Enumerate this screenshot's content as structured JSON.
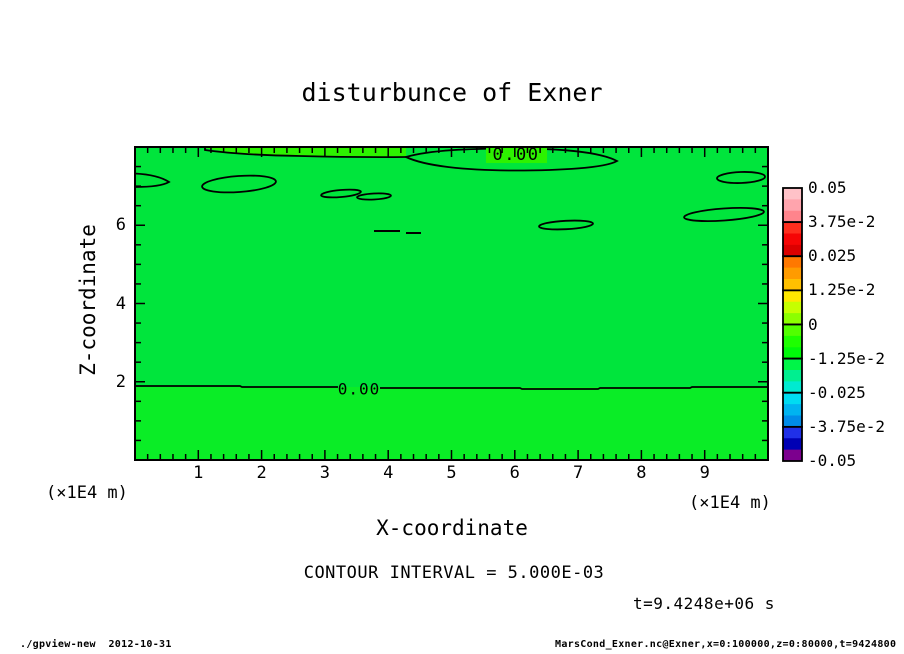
{
  "title": "disturbunce of Exner",
  "colors": {
    "background": "#ffffff",
    "stroke": "#000000",
    "field_main": "#00e53c",
    "field_positive_patch": "#2df200",
    "field_lower_layer": "#0aed26"
  },
  "axes": {
    "x": {
      "label": "X-coordinate",
      "unit": "(×1E4 m)",
      "range": [
        0,
        10
      ],
      "major_ticks": [
        "1",
        "2",
        "3",
        "4",
        "5",
        "6",
        "7",
        "8",
        "9"
      ],
      "minor_step": 0.2
    },
    "z": {
      "label": "Z-coordinate",
      "unit": "(×1E4 m)",
      "range": [
        0,
        8
      ],
      "major_ticks": [
        "2",
        "4",
        "6"
      ],
      "minor_step": 0.5
    }
  },
  "colorbar": {
    "labels": [
      "0.05",
      "3.75e-2",
      "0.025",
      "1.25e-2",
      "0",
      "-1.25e-2",
      "-0.025",
      "-3.75e-2",
      "-0.05"
    ],
    "segments": [
      [
        "#ffc2c8",
        "#ffa4ad",
        "#ff848c"
      ],
      [
        "#ff2e1e",
        "#f60505",
        "#db0000"
      ],
      [
        "#ff7800",
        "#ff9b00",
        "#ffc000"
      ],
      [
        "#ffe800",
        "#c6ff00",
        "#8cff00"
      ],
      [
        "#52ff00",
        "#1eff00",
        "#00fa0a"
      ],
      [
        "#00f548",
        "#00ef90",
        "#00ead0"
      ],
      [
        "#00dcf2",
        "#00b4f0",
        "#008ce8"
      ],
      [
        "#2030e8",
        "#0000b4",
        "#7c008e"
      ]
    ]
  },
  "contour_labels": {
    "upper": "0.00",
    "lower": "0.00"
  },
  "captions": {
    "contour_interval": "CONTOUR INTERVAL = 5.000E-03",
    "time": "t=9.4248e+06 s"
  },
  "footer": {
    "left": "./gpview-new  2012-10-31",
    "right": "MarsCond_Exner.nc@Exner,x=0:100000,z=0:80000,t=9424800"
  },
  "chart_data": {
    "type": "contour",
    "title": "disturbunce of Exner",
    "xlabel": "X-coordinate",
    "x_unit": "×1E4 m",
    "xlim": [
      0,
      10
    ],
    "x_major_ticks": [
      1,
      2,
      3,
      4,
      5,
      6,
      7,
      8,
      9
    ],
    "ylabel": "Z-coordinate",
    "y_unit": "×1E4 m",
    "ylim": [
      0,
      8
    ],
    "y_major_ticks": [
      2,
      4,
      6
    ],
    "contour_interval": 0.005,
    "time_label": "t=9.4248e+06 s",
    "colorbar_levels": [
      0.05,
      0.0375,
      0.025,
      0.0125,
      0,
      -0.0125,
      -0.025,
      -0.0375,
      -0.05
    ],
    "field_summary": "Exner-function disturbance is approximately 0 over the whole x-z section (|value| < 0.005, green fill); only 0.00 contours appear",
    "zero_contour_features": [
      {
        "shape": "horizontal line",
        "label": "0.00",
        "x_range": [
          0,
          10
        ],
        "z": 1.87
      },
      {
        "shape": "open contour from top boundary",
        "x_range": [
          1.1,
          4.3
        ],
        "z_range": [
          7.55,
          8.0
        ]
      },
      {
        "shape": "closed contour",
        "label": "0.00",
        "x_range": [
          4.3,
          7.6
        ],
        "z_range": [
          7.4,
          8.0
        ]
      },
      {
        "shape": "closed contour at left boundary",
        "x_range": [
          0.0,
          0.55
        ],
        "z_range": [
          7.0,
          7.35
        ]
      },
      {
        "shape": "closed contour",
        "x_range": [
          1.05,
          2.25
        ],
        "z_range": [
          6.85,
          7.3
        ]
      },
      {
        "shape": "closed thin contour",
        "x_range": [
          2.95,
          4.05
        ],
        "z_range": [
          6.65,
          6.9
        ]
      },
      {
        "shape": "closed thin contour",
        "x_range": [
          6.4,
          7.25
        ],
        "z_range": [
          5.9,
          6.1
        ]
      },
      {
        "shape": "closed thin contour",
        "x_range": [
          8.65,
          9.95
        ],
        "z_range": [
          6.1,
          6.4
        ]
      },
      {
        "shape": "closed thin contour",
        "x_range": [
          9.2,
          9.95
        ],
        "z_range": [
          7.1,
          7.35
        ]
      },
      {
        "shape": "short contour segments",
        "x_range": [
          3.8,
          4.5
        ],
        "z": 5.8
      }
    ]
  }
}
